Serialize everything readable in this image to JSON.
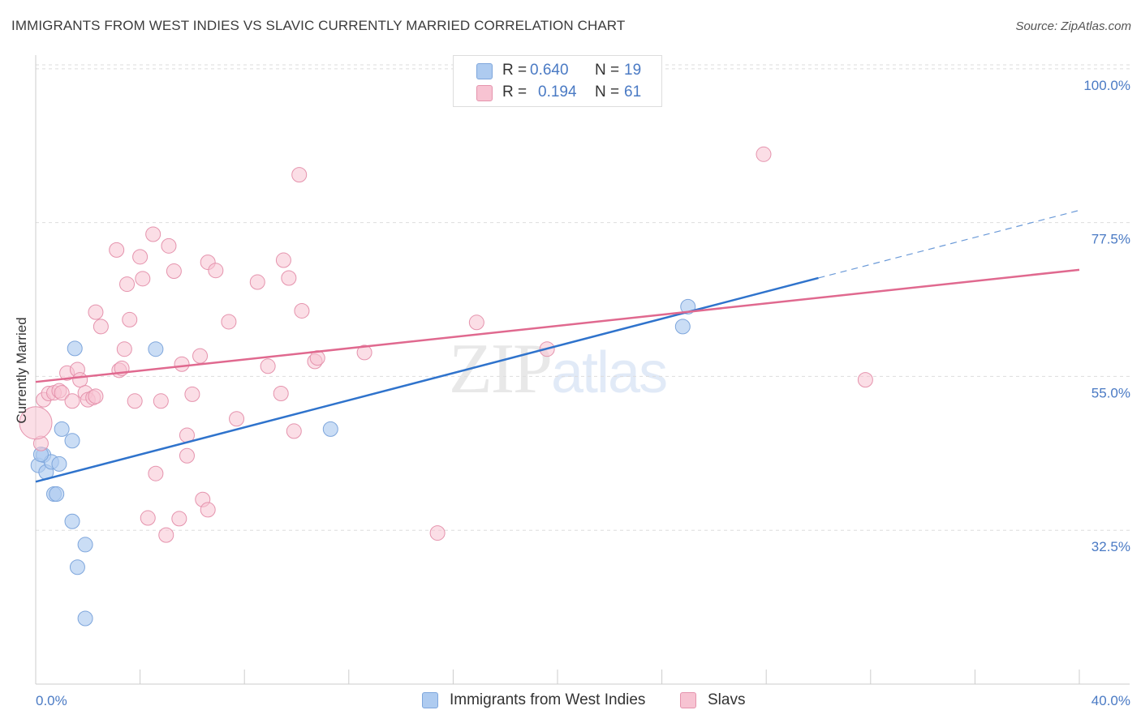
{
  "title": "IMMIGRANTS FROM WEST INDIES VS SLAVIC CURRENTLY MARRIED CORRELATION CHART",
  "source": "Source: ZipAtlas.com",
  "watermark": {
    "part1": "ZIP",
    "part2": "atlas"
  },
  "legend": {
    "r_label": "R =",
    "n_label": "N =",
    "rows": [
      {
        "r": "0.640",
        "n": "19",
        "color": "#aecbf0",
        "border": "#7ea6dc"
      },
      {
        "r": "0.194",
        "n": "61",
        "color": "#f7c3d2",
        "border": "#e593ad"
      }
    ]
  },
  "bottom_legend": [
    {
      "label": "Immigrants from West Indies",
      "color": "#aecbf0",
      "border": "#7ea6dc"
    },
    {
      "label": "Slavs",
      "color": "#f7c3d2",
      "border": "#e593ad"
    }
  ],
  "chart_data": {
    "type": "scatter",
    "title": "IMMIGRANTS FROM WEST INDIES VS SLAVIC CURRENTLY MARRIED CORRELATION CHART",
    "xlabel": "",
    "ylabel": "Currently Married",
    "xlim": [
      0,
      40
    ],
    "ylim": [
      10,
      102
    ],
    "x_tick_labels": [
      "0.0%",
      "40.0%"
    ],
    "y_ticks": [
      32.5,
      55.0,
      77.5,
      100.0
    ],
    "y_tick_labels": [
      "32.5%",
      "55.0%",
      "77.5%",
      "100.0%"
    ],
    "grid": true,
    "legend_position": "top-center",
    "series": [
      {
        "name": "Immigrants from West Indies",
        "color": "#7ea6dc",
        "fill": "#aecbf0",
        "points": [
          [
            0.1,
            42.0
          ],
          [
            0.3,
            43.5
          ],
          [
            0.4,
            41.0
          ],
          [
            0.6,
            42.5
          ],
          [
            0.9,
            42.2
          ],
          [
            0.7,
            37.8
          ],
          [
            0.8,
            37.8
          ],
          [
            1.0,
            47.3
          ],
          [
            1.4,
            45.6
          ],
          [
            1.4,
            33.8
          ],
          [
            1.5,
            59.1
          ],
          [
            1.9,
            30.4
          ],
          [
            1.6,
            27.1
          ],
          [
            1.9,
            19.6
          ],
          [
            4.6,
            59.0
          ],
          [
            11.3,
            47.3
          ],
          [
            24.8,
            62.3
          ],
          [
            25.0,
            65.2
          ],
          [
            0.2,
            43.6
          ]
        ],
        "trend": {
          "x0": 0,
          "y0": 39.6,
          "x1": 30.0,
          "y1": 69.4,
          "dash_to_x": 40,
          "dash_to_y": 79.3
        }
      },
      {
        "name": "Slavs",
        "color": "#e593ad",
        "fill": "#f7c3d2",
        "points": [
          [
            0.2,
            45.2
          ],
          [
            0.3,
            51.6
          ],
          [
            0.5,
            52.5
          ],
          [
            0.7,
            52.6
          ],
          [
            0.9,
            52.9
          ],
          [
            1.0,
            52.6
          ],
          [
            1.2,
            55.5
          ],
          [
            1.4,
            51.4
          ],
          [
            1.6,
            56.0
          ],
          [
            1.7,
            54.5
          ],
          [
            1.9,
            52.6
          ],
          [
            2.0,
            51.6
          ],
          [
            2.2,
            51.9
          ],
          [
            2.3,
            52.1
          ],
          [
            2.3,
            64.4
          ],
          [
            2.5,
            62.3
          ],
          [
            3.1,
            73.5
          ],
          [
            3.2,
            55.9
          ],
          [
            3.3,
            56.2
          ],
          [
            3.4,
            59.0
          ],
          [
            3.5,
            68.5
          ],
          [
            3.6,
            63.3
          ],
          [
            3.8,
            51.4
          ],
          [
            4.0,
            72.5
          ],
          [
            4.1,
            69.3
          ],
          [
            4.3,
            34.3
          ],
          [
            4.5,
            75.8
          ],
          [
            4.6,
            40.8
          ],
          [
            4.8,
            51.4
          ],
          [
            5.1,
            74.1
          ],
          [
            5.0,
            31.8
          ],
          [
            5.3,
            70.4
          ],
          [
            5.5,
            34.2
          ],
          [
            5.6,
            56.8
          ],
          [
            5.8,
            43.4
          ],
          [
            5.8,
            46.4
          ],
          [
            6.0,
            52.4
          ],
          [
            6.3,
            58.0
          ],
          [
            6.4,
            37.0
          ],
          [
            6.6,
            35.5
          ],
          [
            6.6,
            71.7
          ],
          [
            6.9,
            70.5
          ],
          [
            7.4,
            63.0
          ],
          [
            7.7,
            48.8
          ],
          [
            8.5,
            68.8
          ],
          [
            8.9,
            56.5
          ],
          [
            9.4,
            52.5
          ],
          [
            9.5,
            72.0
          ],
          [
            9.7,
            69.4
          ],
          [
            9.9,
            47.0
          ],
          [
            10.1,
            84.5
          ],
          [
            10.2,
            64.6
          ],
          [
            10.7,
            57.2
          ],
          [
            10.8,
            57.7
          ],
          [
            12.6,
            58.5
          ],
          [
            15.4,
            32.1
          ],
          [
            16.9,
            62.9
          ],
          [
            19.6,
            59.0
          ],
          [
            27.9,
            87.5
          ],
          [
            31.8,
            54.5
          ],
          [
            0.0,
            48.2
          ]
        ],
        "trend": {
          "x0": 0,
          "y0": 54.2,
          "x1": 40,
          "y1": 70.6
        }
      }
    ]
  }
}
